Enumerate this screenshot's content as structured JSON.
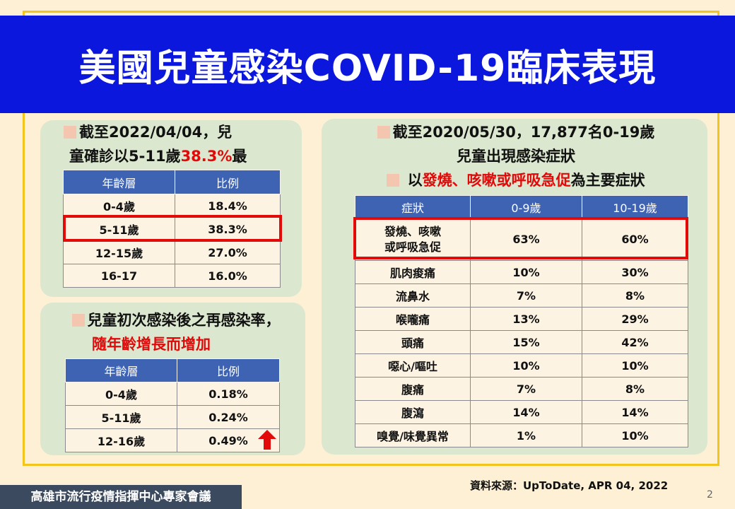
{
  "title": "美國兒童感染COVID-19臨床表現",
  "panel1": {
    "line1": "截至2022/04/04，兒",
    "line2_prefix": "童確診以5-11歲",
    "line2_red": "38.3%",
    "line2_suffix": "最",
    "headers": [
      "年齡層",
      "比例"
    ],
    "rows": [
      [
        "0-4歲",
        "18.4%"
      ],
      [
        "5-11歲",
        "38.3%"
      ],
      [
        "12-15歲",
        "27.0%"
      ],
      [
        "16-17",
        "16.0%"
      ]
    ]
  },
  "panel2": {
    "line1": "兒童初次感染後之再感染率，",
    "line2": "隨年齡增長而增加",
    "headers": [
      "年齡層",
      "比例"
    ],
    "rows": [
      [
        "0-4歲",
        "0.18%"
      ],
      [
        "5-11歲",
        "0.24%"
      ],
      [
        "12-16歲",
        "0.49%"
      ]
    ]
  },
  "panel3": {
    "line1": "截至2020/05/30，17,877名0-19歲",
    "line2": "兒童出現感染症狀",
    "line3_prefix": "以",
    "line3_red": "發燒、咳嗽或呼吸急促",
    "line3_suffix": "為主要症狀",
    "headers": [
      "症狀",
      "0-9歲",
      "10-19歲"
    ],
    "rows": [
      [
        "發燒、咳嗽\n或呼吸急促",
        "63%",
        "60%"
      ],
      [
        "肌肉痠痛",
        "10%",
        "30%"
      ],
      [
        "流鼻水",
        "7%",
        "8%"
      ],
      [
        "喉嚨痛",
        "13%",
        "29%"
      ],
      [
        "頭痛",
        "15%",
        "42%"
      ],
      [
        "噁心/嘔吐",
        "10%",
        "10%"
      ],
      [
        "腹痛",
        "7%",
        "8%"
      ],
      [
        "腹瀉",
        "14%",
        "14%"
      ],
      [
        "嗅覺/味覺異常",
        "1%",
        "10%"
      ]
    ]
  },
  "source": "資料來源：UpToDate, APR 04, 2022",
  "footer": "高雄市流行疫情指揮中心專家會議",
  "page_number": "2",
  "colors": {
    "title_band": "#0b17dc",
    "frame": "#f2c41c",
    "panel": "#dbe8cf",
    "table_header": "#3f63b3",
    "highlight": "#e30a0a"
  }
}
